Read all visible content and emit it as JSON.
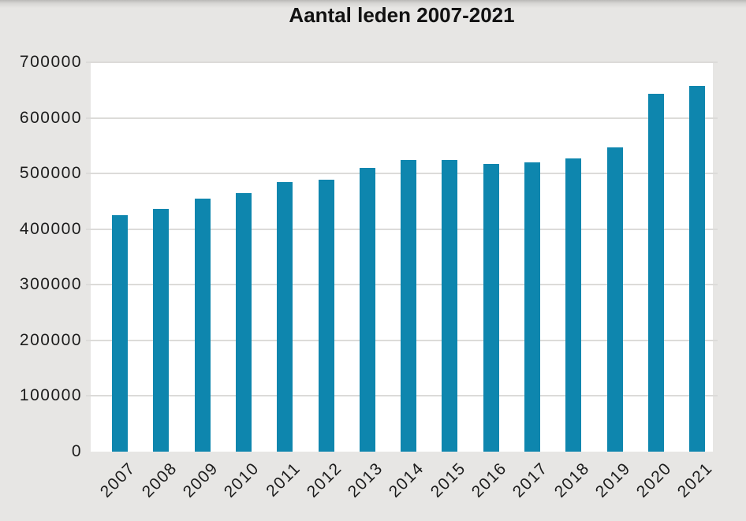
{
  "title": "Aantal leden 2007-2021",
  "chart_data": {
    "type": "bar",
    "title": "Aantal leden 2007-2021",
    "categories": [
      "2007",
      "2008",
      "2009",
      "2010",
      "2011",
      "2012",
      "2013",
      "2014",
      "2015",
      "2016",
      "2017",
      "2018",
      "2019",
      "2020",
      "2021"
    ],
    "values": [
      425000,
      437000,
      455000,
      465000,
      484000,
      489000,
      510000,
      524000,
      524000,
      517000,
      520000,
      527000,
      547000,
      643000,
      657000
    ],
    "xlabel": "",
    "ylabel": "",
    "ylim": [
      0,
      700000
    ],
    "ytick_interval": 100000,
    "yticks": [
      "0",
      "100000",
      "200000",
      "300000",
      "400000",
      "500000",
      "600000",
      "700000"
    ],
    "grid": true,
    "legend": "none",
    "x_tick_rotation_deg": 45,
    "colors": {
      "bar": "#0e86ae",
      "page_background": "#e7e6e4",
      "plot_background": "#ffffff",
      "gridline": "#dcdbd9",
      "text": "#1c1c1c"
    }
  }
}
